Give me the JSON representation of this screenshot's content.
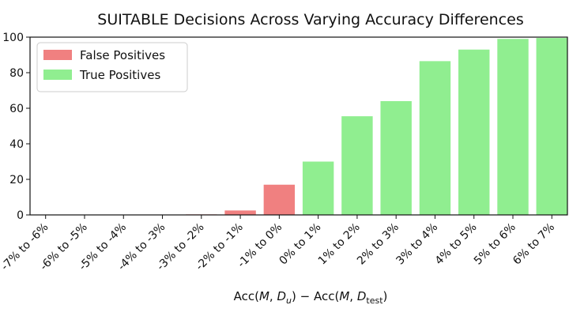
{
  "chart_data": {
    "type": "bar",
    "title": "SUITABLE Decisions Across Varying Accuracy Differences",
    "xlabel": "Acc(M, D_u) − Acc(M, D_test)",
    "xlabel_parts": {
      "acc1": "Acc(",
      "m1": "M",
      "sep1": ", ",
      "d1": "D",
      "d1_sub": "u",
      "mid": ") − Acc(",
      "m2": "M",
      "sep2": ", ",
      "d2": "D",
      "d2_sub": "test",
      "close": ")"
    },
    "ylabel": "",
    "ylim": [
      0,
      100
    ],
    "yticks": [
      0,
      20,
      40,
      60,
      80,
      100
    ],
    "yticks_labels": [
      "0",
      "20",
      "40",
      "60",
      "80",
      "100"
    ],
    "categories": [
      "-7% to -6%",
      "-6% to -5%",
      "-5% to -4%",
      "-4% to -3%",
      "-3% to -2%",
      "-2% to -1%",
      "-1% to 0%",
      "0% to 1%",
      "1% to 2%",
      "2% to 3%",
      "3% to 4%",
      "4% to 5%",
      "5% to 6%",
      "6% to 7%"
    ],
    "series": [
      {
        "name": "False Positives",
        "color": "#f08080",
        "values": [
          0,
          0,
          0,
          0,
          0.3,
          2.5,
          17,
          null,
          null,
          null,
          null,
          null,
          null,
          null
        ]
      },
      {
        "name": "True Positives",
        "color": "#90ee90",
        "values": [
          null,
          null,
          null,
          null,
          null,
          null,
          null,
          30,
          55.5,
          64,
          86.5,
          93,
          99,
          99.5
        ]
      }
    ],
    "legend_position": "upper-left",
    "grid": false
  }
}
